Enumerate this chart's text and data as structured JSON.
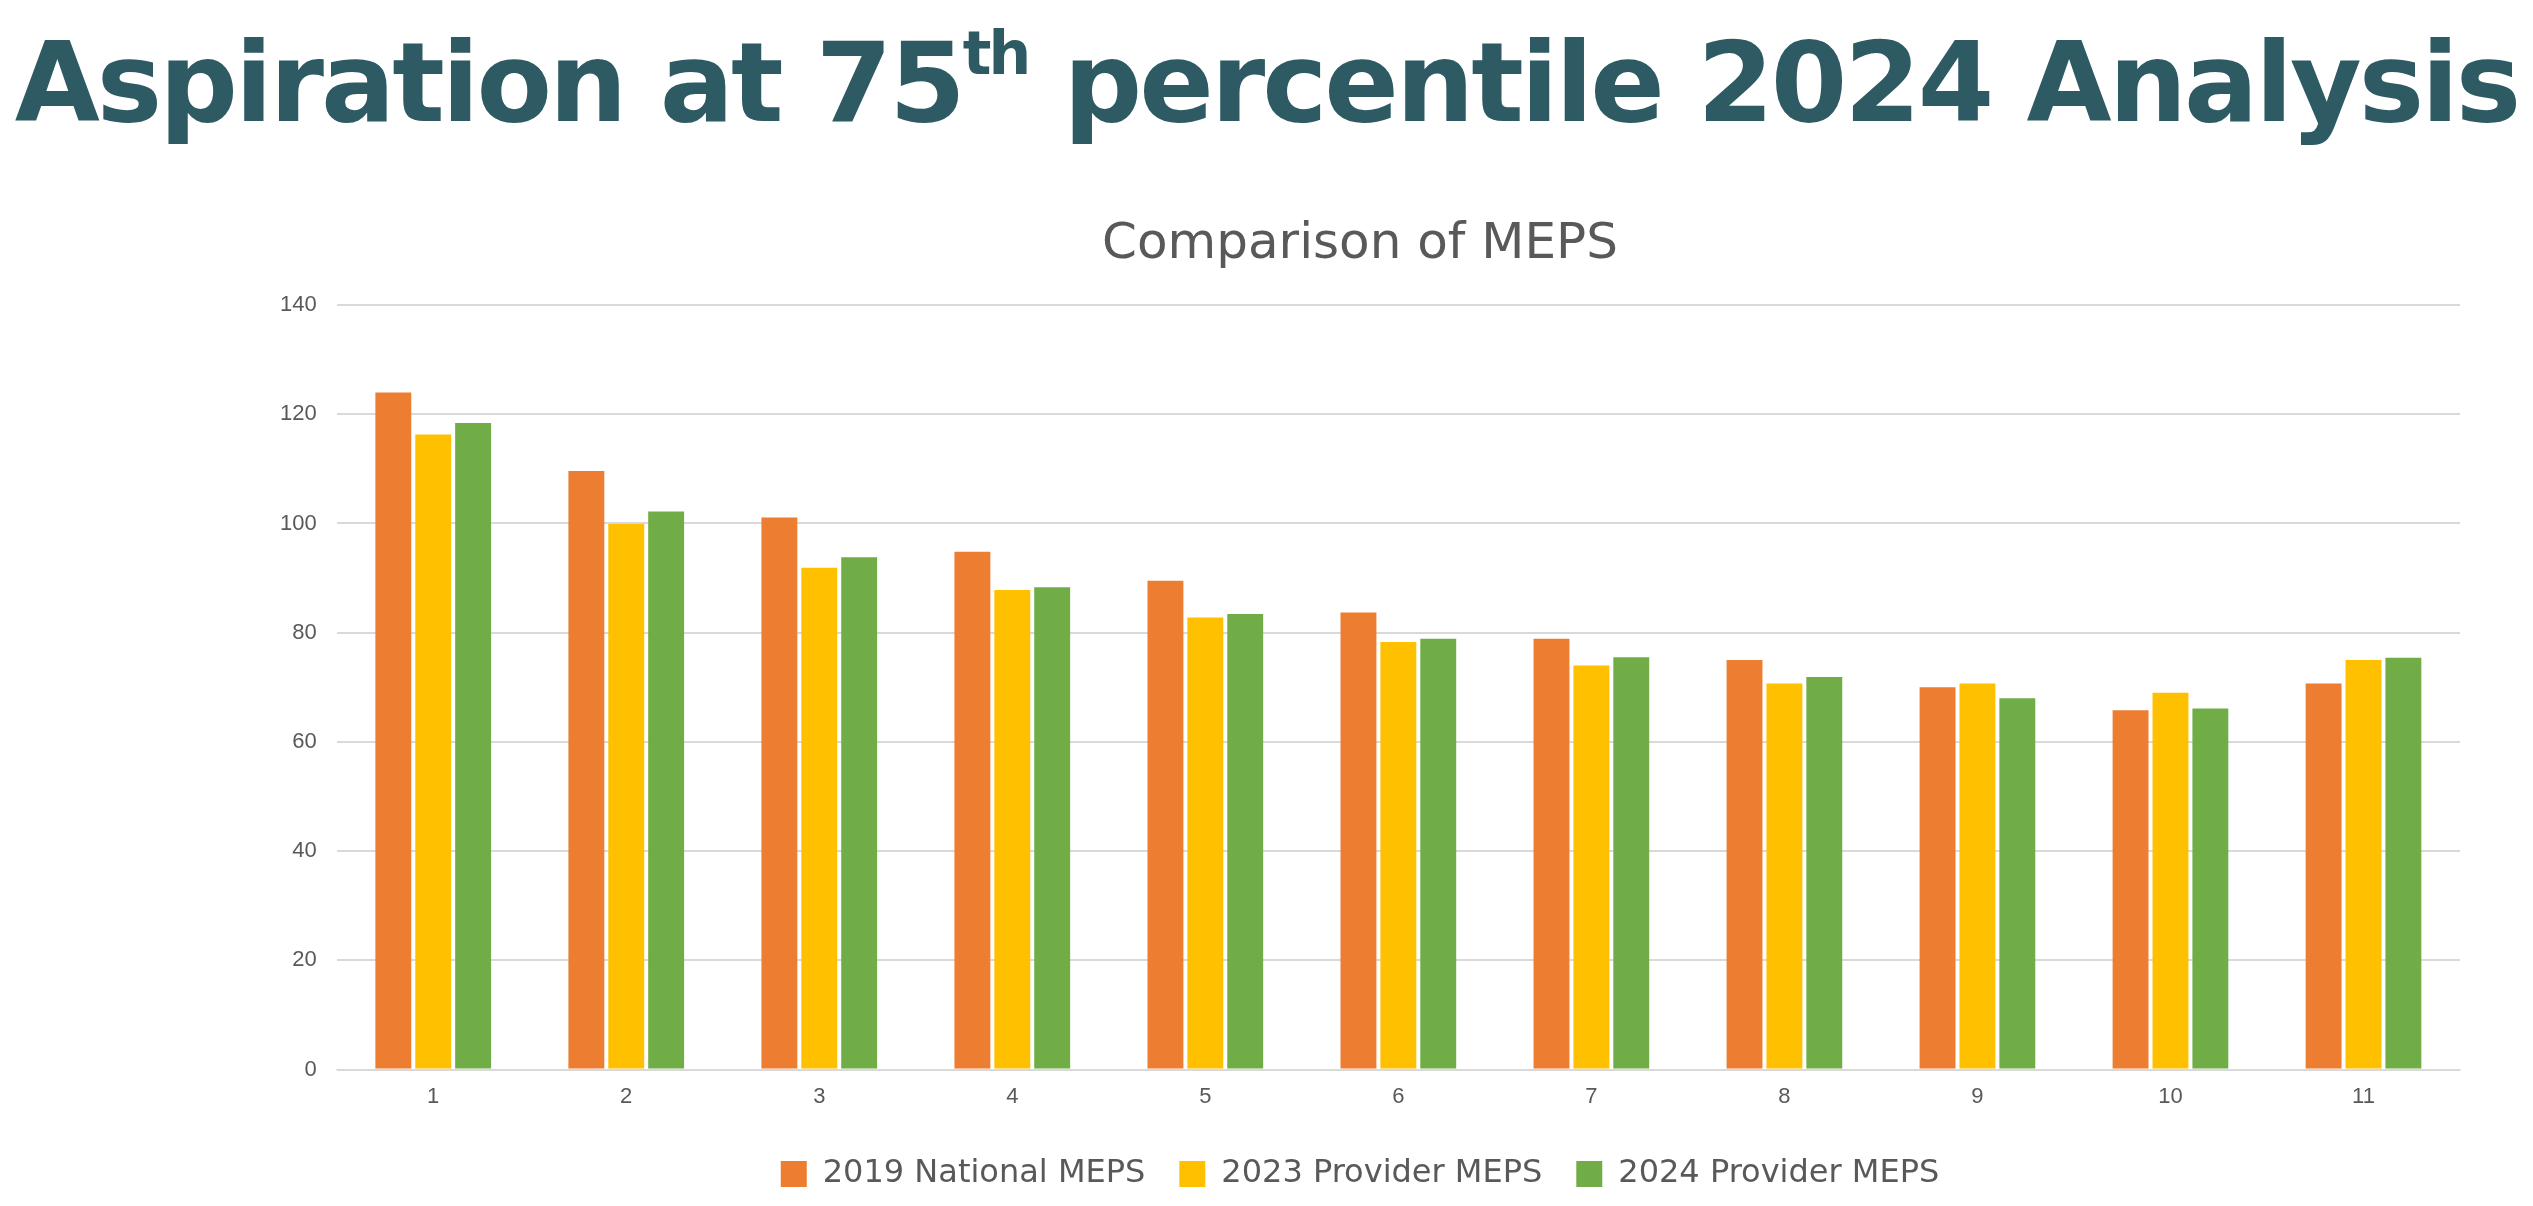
{
  "chart_data": {
    "type": "bar",
    "title": "Aspiration at 75$^{th}$ percentile 2024 Analysis",
    "subtitle": "Comparison of MEPS",
    "categories": [
      "1",
      "2",
      "3",
      "4",
      "5",
      "6",
      "7",
      "8",
      "9",
      "10",
      "11"
    ],
    "series": [
      {
        "name": "2019 National MEPS",
        "color": "#ed7d31",
        "values": [
          124.0,
          109.6,
          101.1,
          94.8,
          89.5,
          83.7,
          78.9,
          75.0,
          70.0,
          65.8,
          70.7
        ]
      },
      {
        "name": "2023 Provider MEPS",
        "color": "#ffc000",
        "values": [
          116.3,
          99.9,
          91.9,
          87.8,
          82.8,
          78.3,
          74.0,
          70.7,
          70.7,
          69.0,
          75.0
        ]
      },
      {
        "name": "2024 Provider MEPS",
        "color": "#70ad47",
        "values": [
          118.4,
          102.2,
          93.8,
          88.3,
          83.4,
          78.9,
          75.5,
          71.9,
          68.0,
          66.1,
          75.4
        ]
      }
    ],
    "ylim": [
      0,
      140
    ],
    "yticks": [
      0,
      20,
      40,
      60,
      80,
      100,
      120,
      140
    ],
    "grid": "y",
    "legend": "bottom"
  }
}
